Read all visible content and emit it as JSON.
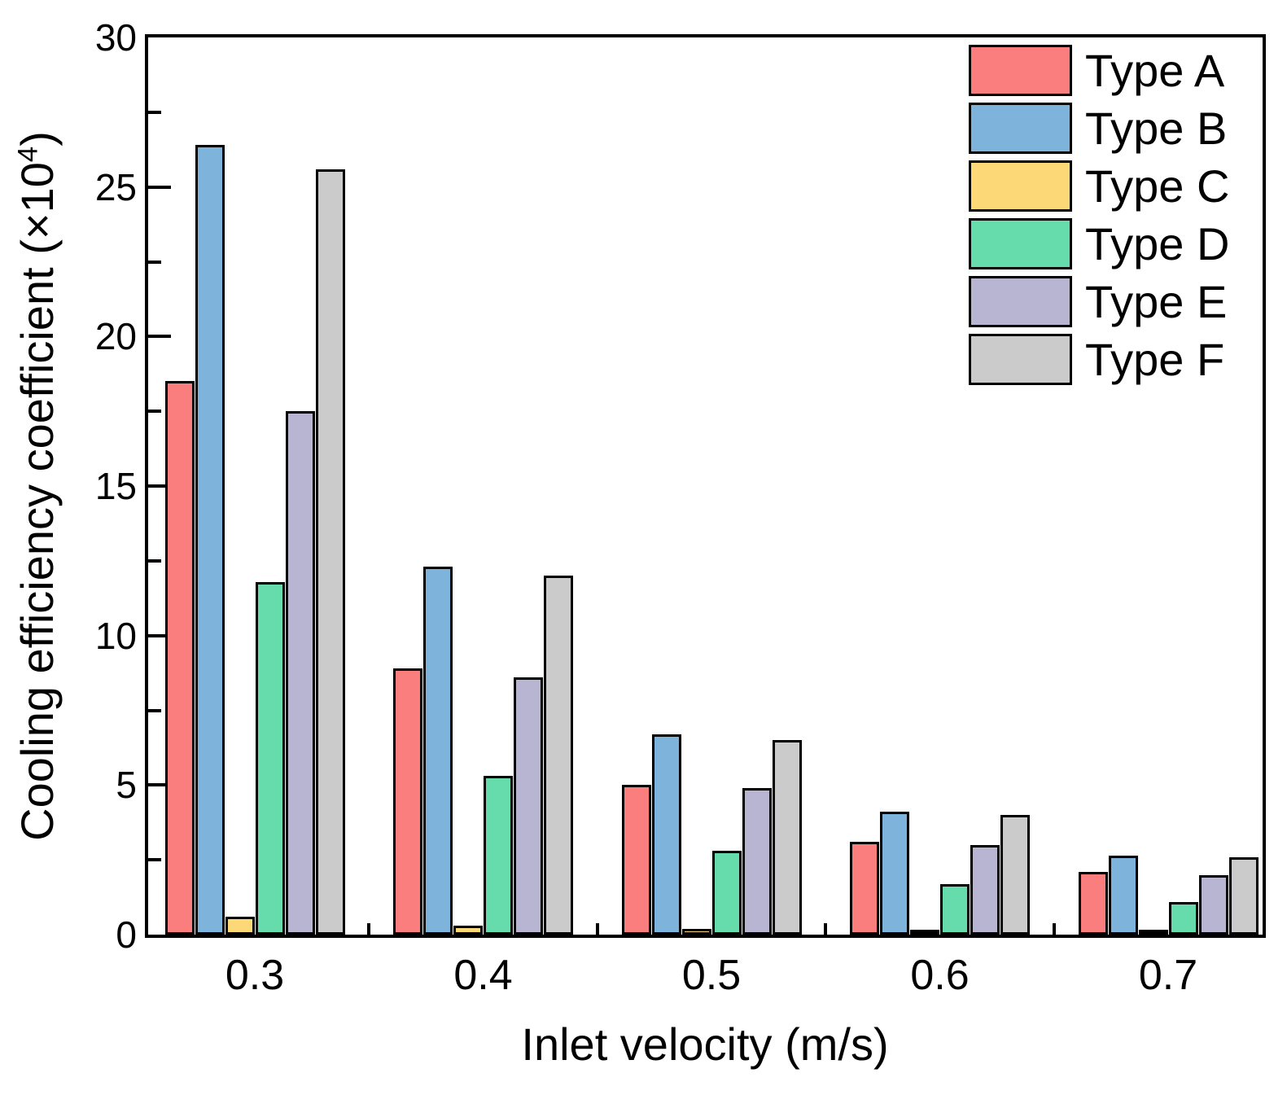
{
  "chart_data": {
    "type": "bar",
    "title": "",
    "xlabel": "Inlet velocity (m/s)",
    "ylabel": "Cooling efficiency coefficient (×10⁴)",
    "ylabel_prefix": "Cooling efficiency coefficient (×10",
    "ylabel_sup": "4",
    "ylabel_suffix": ")",
    "categories": [
      "0.3",
      "0.4",
      "0.5",
      "0.6",
      "0.7"
    ],
    "series": [
      {
        "name": "Type A",
        "color": "#FA7E7E",
        "values": [
          18.5,
          8.9,
          5.0,
          3.1,
          2.1
        ]
      },
      {
        "name": "Type B",
        "color": "#7EB3DC",
        "values": [
          26.4,
          12.3,
          6.7,
          4.1,
          2.65
        ]
      },
      {
        "name": "Type C",
        "color": "#FCD877",
        "values": [
          0.6,
          0.3,
          0.2,
          0.1,
          0.05
        ]
      },
      {
        "name": "Type D",
        "color": "#66DCAC",
        "values": [
          11.8,
          5.3,
          2.8,
          1.7,
          1.1
        ]
      },
      {
        "name": "Type E",
        "color": "#B7B5D2",
        "values": [
          17.5,
          8.6,
          4.9,
          3.0,
          2.0
        ]
      },
      {
        "name": "Type F",
        "color": "#CBCBCB",
        "values": [
          25.6,
          12.0,
          6.5,
          4.0,
          2.6
        ]
      }
    ],
    "ylim": [
      0,
      30
    ],
    "yticks_major": [
      0,
      5,
      10,
      15,
      20,
      25,
      30
    ],
    "yticks_minor": [
      2.5,
      7.5,
      12.5,
      17.5,
      22.5,
      27.5
    ],
    "grid": false,
    "legend_position": "top-right",
    "bar_stroke_color": "#000000",
    "axis_color": "#000000"
  }
}
